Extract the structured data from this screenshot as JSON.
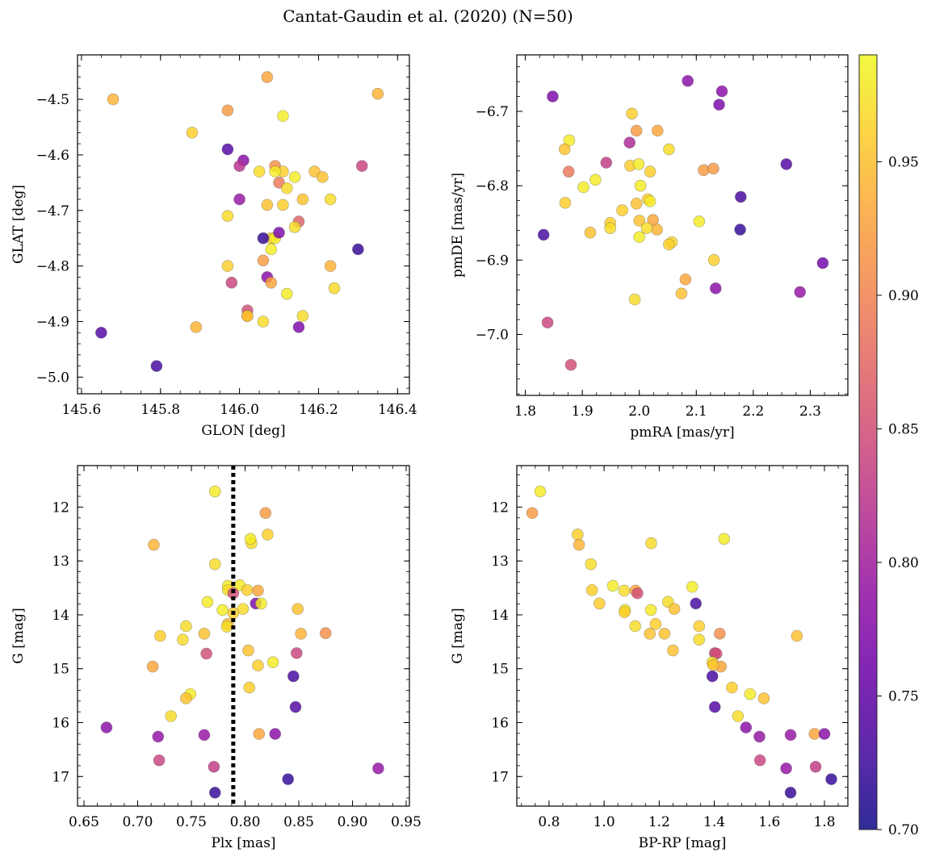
{
  "figure": {
    "suptitle": "Cantat-Gaudin et al. (2020) (N=50)",
    "colorbar": {
      "ticks": [
        0.7,
        0.75,
        0.8,
        0.85,
        0.9,
        0.95
      ],
      "range": [
        0.7,
        0.99
      ],
      "colormap": "plasma"
    }
  },
  "chart_data": [
    {
      "type": "scatter",
      "title": "",
      "xlabel": "GLON [deg]",
      "ylabel": "GLAT [deg]",
      "xlim": [
        145.59,
        146.43
      ],
      "ylim": [
        -5.03,
        -4.42
      ],
      "yinverted": false,
      "xticks": [
        145.6,
        145.8,
        146.0,
        146.2,
        146.4
      ],
      "xtick_labels": [
        "145.6",
        "145.8",
        "146.0",
        "146.2",
        "146.4"
      ],
      "yticks": [
        -4.5,
        -4.6,
        -4.7,
        -4.8,
        -4.9,
        -5.0
      ],
      "ytick_labels": [
        "−4.5",
        "−4.6",
        "−4.7",
        "−4.8",
        "−4.9",
        "−5.0"
      ],
      "points": [
        [
          146.07,
          -4.46,
          0.93
        ],
        [
          145.68,
          -4.5,
          0.94
        ],
        [
          146.35,
          -4.49,
          0.94
        ],
        [
          145.97,
          -4.52,
          0.92
        ],
        [
          146.11,
          -4.53,
          0.98
        ],
        [
          145.88,
          -4.56,
          0.96
        ],
        [
          145.97,
          -4.59,
          0.74
        ],
        [
          146.01,
          -4.61,
          0.78
        ],
        [
          146.0,
          -4.62,
          0.82
        ],
        [
          146.31,
          -4.62,
          0.84
        ],
        [
          146.09,
          -4.62,
          0.91
        ],
        [
          146.11,
          -4.63,
          0.96
        ],
        [
          146.05,
          -4.63,
          0.97
        ],
        [
          146.09,
          -4.63,
          0.98
        ],
        [
          146.19,
          -4.63,
          0.95
        ],
        [
          146.21,
          -4.64,
          0.95
        ],
        [
          146.14,
          -4.64,
          0.98
        ],
        [
          146.1,
          -4.65,
          0.89
        ],
        [
          146.12,
          -4.66,
          0.97
        ],
        [
          146.0,
          -4.68,
          0.79
        ],
        [
          146.16,
          -4.68,
          0.95
        ],
        [
          146.23,
          -4.68,
          0.97
        ],
        [
          146.11,
          -4.69,
          0.96
        ],
        [
          146.07,
          -4.69,
          0.95
        ],
        [
          145.97,
          -4.71,
          0.97
        ],
        [
          146.15,
          -4.72,
          0.87
        ],
        [
          146.14,
          -4.73,
          0.97
        ],
        [
          146.08,
          -4.75,
          0.96
        ],
        [
          146.09,
          -4.75,
          0.98
        ],
        [
          146.1,
          -4.74,
          0.77
        ],
        [
          146.06,
          -4.75,
          0.72
        ],
        [
          146.3,
          -4.77,
          0.72
        ],
        [
          146.08,
          -4.77,
          0.98
        ],
        [
          145.97,
          -4.8,
          0.96
        ],
        [
          146.06,
          -4.79,
          0.92
        ],
        [
          146.23,
          -4.8,
          0.94
        ],
        [
          146.07,
          -4.82,
          0.78
        ],
        [
          145.98,
          -4.83,
          0.84
        ],
        [
          146.08,
          -4.83,
          0.93
        ],
        [
          146.24,
          -4.84,
          0.97
        ],
        [
          146.12,
          -4.85,
          0.98
        ],
        [
          146.02,
          -4.88,
          0.85
        ],
        [
          146.16,
          -4.89,
          0.97
        ],
        [
          146.02,
          -4.89,
          0.93
        ],
        [
          146.06,
          -4.9,
          0.97
        ],
        [
          146.15,
          -4.91,
          0.77
        ],
        [
          145.89,
          -4.91,
          0.94
        ],
        [
          145.65,
          -4.92,
          0.74
        ],
        [
          145.79,
          -4.98,
          0.73
        ],
        [
          146.02,
          -4.89,
          0.95
        ]
      ]
    },
    {
      "type": "scatter",
      "title": "",
      "xlabel": "pmRA [mas/yr]",
      "ylabel": "pmDE [mas/yr]",
      "xlim": [
        1.785,
        2.366
      ],
      "ylim": [
        -7.082,
        -6.624
      ],
      "yinverted": false,
      "xticks": [
        1.8,
        1.9,
        2.0,
        2.1,
        2.2,
        2.3
      ],
      "xtick_labels": [
        "1.8",
        "1.9",
        "2.0",
        "2.1",
        "2.2",
        "2.3"
      ],
      "yticks": [
        -6.7,
        -6.8,
        -6.9,
        -7.0
      ],
      "ytick_labels": [
        "−6.7",
        "−6.8",
        "−6.9",
        "−7.0"
      ],
      "points": [
        [
          2.085,
          -6.659,
          0.78
        ],
        [
          1.848,
          -6.68,
          0.77
        ],
        [
          2.145,
          -6.673,
          0.78
        ],
        [
          2.14,
          -6.691,
          0.77
        ],
        [
          1.987,
          -6.703,
          0.96
        ],
        [
          1.995,
          -6.726,
          0.92
        ],
        [
          2.032,
          -6.726,
          0.93
        ],
        [
          1.877,
          -6.739,
          0.98
        ],
        [
          1.983,
          -6.742,
          0.81
        ],
        [
          1.869,
          -6.751,
          0.95
        ],
        [
          2.052,
          -6.751,
          0.97
        ],
        [
          1.942,
          -6.769,
          0.83
        ],
        [
          2.258,
          -6.771,
          0.74
        ],
        [
          1.984,
          -6.773,
          0.96
        ],
        [
          1.999,
          -6.771,
          0.98
        ],
        [
          1.876,
          -6.781,
          0.89
        ],
        [
          2.019,
          -6.781,
          0.96
        ],
        [
          2.113,
          -6.779,
          0.92
        ],
        [
          2.13,
          -6.777,
          0.92
        ],
        [
          1.923,
          -6.792,
          0.98
        ],
        [
          1.902,
          -6.802,
          0.98
        ],
        [
          2.002,
          -6.8,
          0.98
        ],
        [
          1.87,
          -6.823,
          0.96
        ],
        [
          2.178,
          -6.815,
          0.73
        ],
        [
          2.015,
          -6.818,
          0.96
        ],
        [
          2.019,
          -6.821,
          0.98
        ],
        [
          1.995,
          -6.824,
          0.95
        ],
        [
          1.97,
          -6.833,
          0.96
        ],
        [
          2.0,
          -6.847,
          0.95
        ],
        [
          2.024,
          -6.846,
          0.93
        ],
        [
          2.105,
          -6.848,
          0.98
        ],
        [
          1.949,
          -6.85,
          0.96
        ],
        [
          1.914,
          -6.863,
          0.95
        ],
        [
          1.832,
          -6.866,
          0.73
        ],
        [
          1.949,
          -6.857,
          0.97
        ],
        [
          2.031,
          -6.859,
          0.94
        ],
        [
          2.013,
          -6.857,
          0.97
        ],
        [
          2.177,
          -6.859,
          0.72
        ],
        [
          2.057,
          -6.876,
          0.97
        ],
        [
          2.0,
          -6.869,
          0.98
        ],
        [
          2.052,
          -6.879,
          0.96
        ],
        [
          2.131,
          -6.9,
          0.96
        ],
        [
          2.322,
          -6.904,
          0.76
        ],
        [
          2.081,
          -6.926,
          0.93
        ],
        [
          2.134,
          -6.938,
          0.78
        ],
        [
          2.074,
          -6.945,
          0.95
        ],
        [
          2.282,
          -6.943,
          0.79
        ],
        [
          1.992,
          -6.953,
          0.97
        ],
        [
          1.839,
          -6.984,
          0.84
        ],
        [
          1.88,
          -7.041,
          0.85
        ]
      ]
    },
    {
      "type": "scatter",
      "title": "",
      "xlabel": "Plx [mas]",
      "ylabel": "G [mag]",
      "xlim": [
        0.644,
        0.953
      ],
      "ylim": [
        17.55,
        11.23
      ],
      "yinverted": true,
      "vline": {
        "x": 0.789,
        "style": "dotted"
      },
      "xticks": [
        0.65,
        0.7,
        0.75,
        0.8,
        0.85,
        0.9,
        0.95
      ],
      "xtick_labels": [
        "0.65",
        "0.70",
        "0.75",
        "0.80",
        "0.85",
        "0.90",
        "0.95"
      ],
      "yticks": [
        12,
        13,
        14,
        15,
        16,
        17
      ],
      "ytick_labels": [
        "12",
        "13",
        "14",
        "15",
        "16",
        "17"
      ],
      "points": [
        [
          0.772,
          11.71,
          0.98
        ],
        [
          0.819,
          12.11,
          0.92
        ],
        [
          0.821,
          12.51,
          0.96
        ],
        [
          0.806,
          12.67,
          0.97
        ],
        [
          0.805,
          12.59,
          0.98
        ],
        [
          0.715,
          12.7,
          0.94
        ],
        [
          0.772,
          13.06,
          0.97
        ],
        [
          0.784,
          13.46,
          0.98
        ],
        [
          0.795,
          13.45,
          0.98
        ],
        [
          0.802,
          13.54,
          0.96
        ],
        [
          0.812,
          13.55,
          0.93
        ],
        [
          0.784,
          13.54,
          0.97
        ],
        [
          0.789,
          13.6,
          0.85
        ],
        [
          0.765,
          13.76,
          0.98
        ],
        [
          0.81,
          13.79,
          0.77
        ],
        [
          0.815,
          13.79,
          0.98
        ],
        [
          0.798,
          13.89,
          0.97
        ],
        [
          0.779,
          13.91,
          0.98
        ],
        [
          0.849,
          13.89,
          0.95
        ],
        [
          0.789,
          13.97,
          0.96
        ],
        [
          0.745,
          14.21,
          0.97
        ],
        [
          0.784,
          14.17,
          0.95
        ],
        [
          0.783,
          14.22,
          0.97
        ],
        [
          0.721,
          14.39,
          0.96
        ],
        [
          0.762,
          14.35,
          0.95
        ],
        [
          0.852,
          14.35,
          0.94
        ],
        [
          0.875,
          14.34,
          0.91
        ],
        [
          0.742,
          14.46,
          0.97
        ],
        [
          0.803,
          14.66,
          0.95
        ],
        [
          0.848,
          14.71,
          0.84
        ],
        [
          0.764,
          14.72,
          0.85
        ],
        [
          0.826,
          14.88,
          0.98
        ],
        [
          0.714,
          14.96,
          0.93
        ],
        [
          0.812,
          14.94,
          0.96
        ],
        [
          0.845,
          15.14,
          0.73
        ],
        [
          0.804,
          15.35,
          0.96
        ],
        [
          0.749,
          15.47,
          0.98
        ],
        [
          0.745,
          15.55,
          0.95
        ],
        [
          0.847,
          15.71,
          0.74
        ],
        [
          0.731,
          15.88,
          0.97
        ],
        [
          0.671,
          16.09,
          0.78
        ],
        [
          0.719,
          16.26,
          0.79
        ],
        [
          0.762,
          16.23,
          0.79
        ],
        [
          0.813,
          16.21,
          0.93
        ],
        [
          0.828,
          16.21,
          0.78
        ],
        [
          0.72,
          16.7,
          0.84
        ],
        [
          0.771,
          16.82,
          0.83
        ],
        [
          0.924,
          16.85,
          0.79
        ],
        [
          0.84,
          17.05,
          0.72
        ],
        [
          0.772,
          17.3,
          0.72
        ]
      ]
    },
    {
      "type": "scatter",
      "title": "",
      "xlabel": "BP-RP [mag]",
      "ylabel": "G [mag]",
      "xlim": [
        0.683,
        1.885
      ],
      "ylim": [
        17.55,
        11.23
      ],
      "yinverted": true,
      "xticks": [
        0.8,
        1.0,
        1.2,
        1.4,
        1.6,
        1.8
      ],
      "xtick_labels": [
        "0.8",
        "1.0",
        "1.2",
        "1.4",
        "1.6",
        "1.8"
      ],
      "yticks": [
        12,
        13,
        14,
        15,
        16,
        17
      ],
      "ytick_labels": [
        "12",
        "13",
        "14",
        "15",
        "16",
        "17"
      ],
      "points": [
        [
          0.768,
          11.71,
          0.98
        ],
        [
          0.739,
          12.11,
          0.92
        ],
        [
          0.904,
          12.51,
          0.96
        ],
        [
          0.909,
          12.7,
          0.94
        ],
        [
          1.171,
          12.67,
          0.97
        ],
        [
          1.436,
          12.59,
          0.98
        ],
        [
          0.952,
          13.06,
          0.97
        ],
        [
          1.032,
          13.46,
          0.98
        ],
        [
          0.956,
          13.54,
          0.96
        ],
        [
          1.073,
          13.55,
          0.97
        ],
        [
          1.114,
          13.55,
          0.93
        ],
        [
          1.121,
          13.6,
          0.85
        ],
        [
          1.32,
          13.48,
          0.98
        ],
        [
          0.983,
          13.79,
          0.96
        ],
        [
          1.232,
          13.76,
          0.97
        ],
        [
          1.333,
          13.79,
          0.73
        ],
        [
          1.076,
          13.91,
          0.98
        ],
        [
          1.074,
          13.95,
          0.96
        ],
        [
          1.17,
          13.91,
          0.98
        ],
        [
          1.255,
          13.89,
          0.95
        ],
        [
          1.187,
          14.17,
          0.96
        ],
        [
          1.113,
          14.21,
          0.97
        ],
        [
          1.345,
          14.21,
          0.96
        ],
        [
          1.166,
          14.35,
          0.95
        ],
        [
          1.219,
          14.35,
          0.95
        ],
        [
          1.42,
          14.35,
          0.91
        ],
        [
          1.7,
          14.39,
          0.95
        ],
        [
          1.345,
          14.46,
          0.97
        ],
        [
          1.25,
          14.66,
          0.95
        ],
        [
          1.402,
          14.71,
          0.84
        ],
        [
          1.408,
          14.72,
          0.85
        ],
        [
          1.393,
          14.88,
          0.98
        ],
        [
          1.424,
          14.96,
          0.93
        ],
        [
          1.393,
          15.14,
          0.73
        ],
        [
          1.464,
          15.35,
          0.96
        ],
        [
          1.53,
          15.47,
          0.98
        ],
        [
          1.58,
          15.55,
          0.95
        ],
        [
          1.402,
          15.71,
          0.74
        ],
        [
          1.486,
          15.88,
          0.97
        ],
        [
          1.515,
          16.09,
          0.78
        ],
        [
          1.564,
          16.26,
          0.79
        ],
        [
          1.677,
          16.23,
          0.79
        ],
        [
          1.764,
          16.21,
          0.93
        ],
        [
          1.8,
          16.21,
          0.78
        ],
        [
          1.566,
          16.7,
          0.84
        ],
        [
          1.768,
          16.82,
          0.83
        ],
        [
          1.661,
          16.85,
          0.79
        ],
        [
          1.825,
          17.05,
          0.72
        ],
        [
          1.677,
          17.3,
          0.72
        ],
        [
          1.396,
          14.93,
          0.95
        ]
      ]
    }
  ]
}
